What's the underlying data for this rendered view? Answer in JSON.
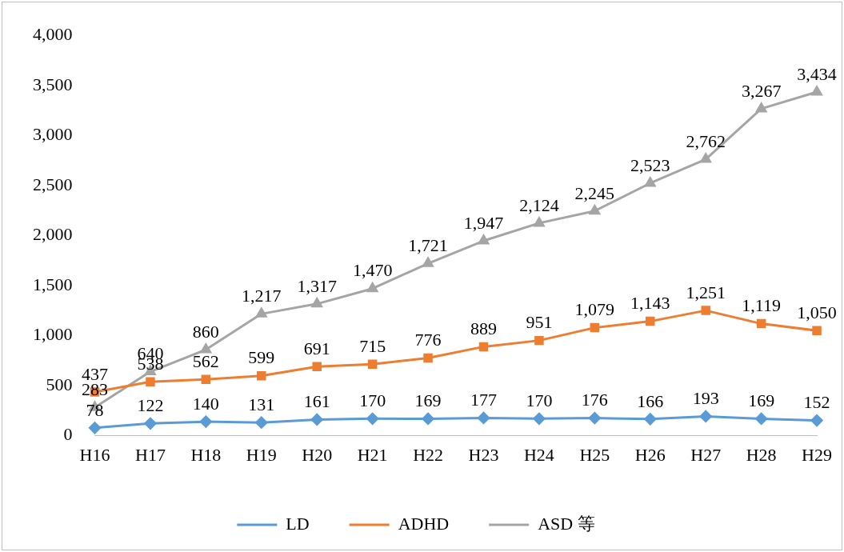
{
  "chart_data": {
    "type": "line",
    "categories": [
      "H16",
      "H17",
      "H18",
      "H19",
      "H20",
      "H21",
      "H22",
      "H23",
      "H24",
      "H25",
      "H26",
      "H27",
      "H28",
      "H29"
    ],
    "series": [
      {
        "name": "LD",
        "color": "#5b9bd5",
        "marker": "diamond",
        "values": [
          78,
          122,
          140,
          131,
          161,
          170,
          169,
          177,
          170,
          176,
          166,
          193,
          169,
          152
        ],
        "value_labels": [
          "78",
          "122",
          "140",
          "131",
          "161",
          "170",
          "169",
          "177",
          "170",
          "176",
          "166",
          "193",
          "169",
          "152"
        ]
      },
      {
        "name": "ADHD",
        "color": "#ed7d31",
        "marker": "square",
        "values": [
          437,
          538,
          562,
          599,
          691,
          715,
          776,
          889,
          951,
          1079,
          1143,
          1251,
          1119,
          1050
        ],
        "value_labels": [
          "437",
          "538",
          "562",
          "599",
          "691",
          "715",
          "776",
          "889",
          "951",
          "1,079",
          "1,143",
          "1,251",
          "1,119",
          "1,050"
        ]
      },
      {
        "name": "ASD 等",
        "color": "#a5a5a5",
        "marker": "triangle",
        "values": [
          283,
          640,
          860,
          1217,
          1317,
          1470,
          1721,
          1947,
          2124,
          2245,
          2523,
          2762,
          3267,
          3434
        ],
        "value_labels": [
          "283",
          "640",
          "860",
          "1,217",
          "1,317",
          "1,470",
          "1,721",
          "1,947",
          "2,124",
          "2,245",
          "2,523",
          "2,762",
          "3,267",
          "3,434"
        ]
      }
    ],
    "ylim": [
      0,
      4000
    ],
    "yticks": [
      0,
      500,
      {
        "value": 1000,
        "label": "1,000"
      },
      {
        "value": 1500,
        "label": "1,500"
      },
      {
        "value": 2000,
        "label": "2,000"
      },
      {
        "value": 2500,
        "label": "2,500"
      },
      {
        "value": 3000,
        "label": "3,000"
      },
      {
        "value": 3500,
        "label": "3,500"
      },
      {
        "value": 4000,
        "label": "4,000"
      }
    ],
    "grid": false,
    "legend": "bottom"
  }
}
